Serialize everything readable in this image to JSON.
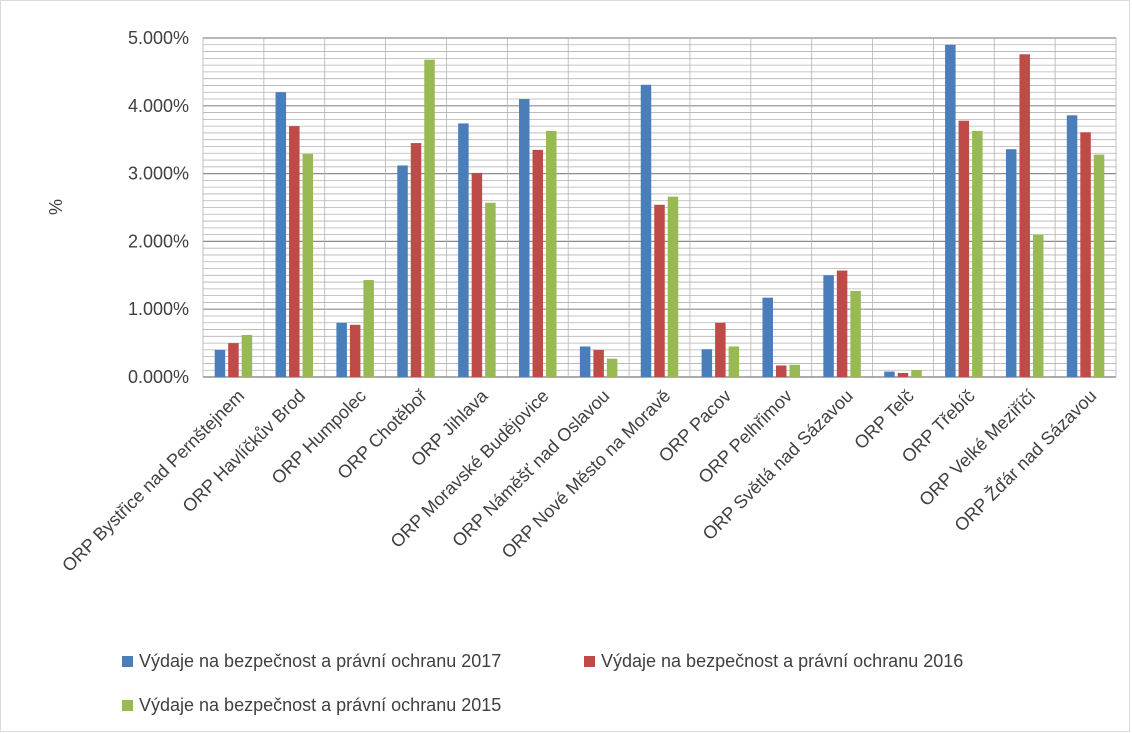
{
  "chart_data": {
    "type": "bar",
    "ylabel": "%",
    "ylim": [
      0,
      5
    ],
    "yticks": [
      "0.000%",
      "1.000%",
      "2.000%",
      "3.000%",
      "4.000%",
      "5.000%"
    ],
    "grid": true,
    "legend_position": "bottom",
    "categories": [
      "ORP Bystřice nad Pernštejnem",
      "ORP Havlíčkův Brod",
      "ORP Humpolec",
      "ORP Chotěboř",
      "ORP Jihlava",
      "ORP Moravské Budějovice",
      "ORP Náměšť nad Oslavou",
      "ORP Nové Město na Moravě",
      "ORP Pacov",
      "ORP Pelhřimov",
      "ORP Světlá nad Sázavou",
      "ORP Telč",
      "ORP Třebíč",
      "ORP Velké Meziříčí",
      "ORP Žďár nad Sázavou"
    ],
    "series": [
      {
        "name": "Výdaje na bezpečnost a právní ochranu 2017",
        "color": "#4a7ebb",
        "values": [
          0.4,
          4.2,
          0.8,
          3.12,
          3.74,
          4.1,
          0.45,
          4.31,
          0.41,
          1.17,
          1.5,
          0.08,
          4.9,
          3.36,
          3.86
        ]
      },
      {
        "name": "Výdaje na bezpečnost a právní ochranu 2016",
        "color": "#be4b48",
        "values": [
          0.5,
          3.7,
          0.77,
          3.45,
          3.01,
          3.35,
          0.4,
          2.54,
          0.8,
          0.17,
          1.57,
          0.06,
          3.78,
          4.76,
          3.61
        ]
      },
      {
        "name": "Výdaje na bezpečnost a právní ochranu 2015",
        "color": "#98b954",
        "values": [
          0.62,
          3.29,
          1.43,
          4.68,
          2.57,
          3.63,
          0.27,
          2.66,
          0.45,
          0.18,
          1.27,
          0.1,
          3.63,
          2.1,
          3.28
        ]
      }
    ]
  }
}
